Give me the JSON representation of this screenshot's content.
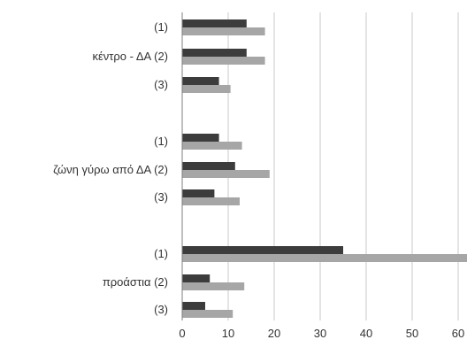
{
  "chart_data": {
    "type": "bar",
    "orientation": "horizontal",
    "grid": true,
    "xlim": [
      0,
      60
    ],
    "x_ticks": [
      0,
      10,
      20,
      30,
      40,
      50,
      60
    ],
    "x_tick_labels": [
      "0",
      "10",
      "20",
      "30",
      "40",
      "50",
      "60"
    ],
    "categories": [
      "(1)",
      "κέντρο - ΔΑ (2)",
      "(3)",
      "(1)",
      "ζώνη γύρω από ΔΑ (2)",
      "(3)",
      "(1)",
      "προάστια (2)",
      "(3)"
    ],
    "series": [
      {
        "values": [
          14,
          14,
          8,
          8,
          11.5,
          7,
          35,
          6,
          5
        ]
      },
      {
        "values": [
          18,
          18,
          10.5,
          13,
          19,
          12.5,
          62,
          13.5,
          11
        ]
      }
    ]
  },
  "colors": {
    "series_1": "#3c3c3c",
    "series_2": "#a6a6a6",
    "grid": "#c8c8c8",
    "axis": "#7f7f7f"
  }
}
